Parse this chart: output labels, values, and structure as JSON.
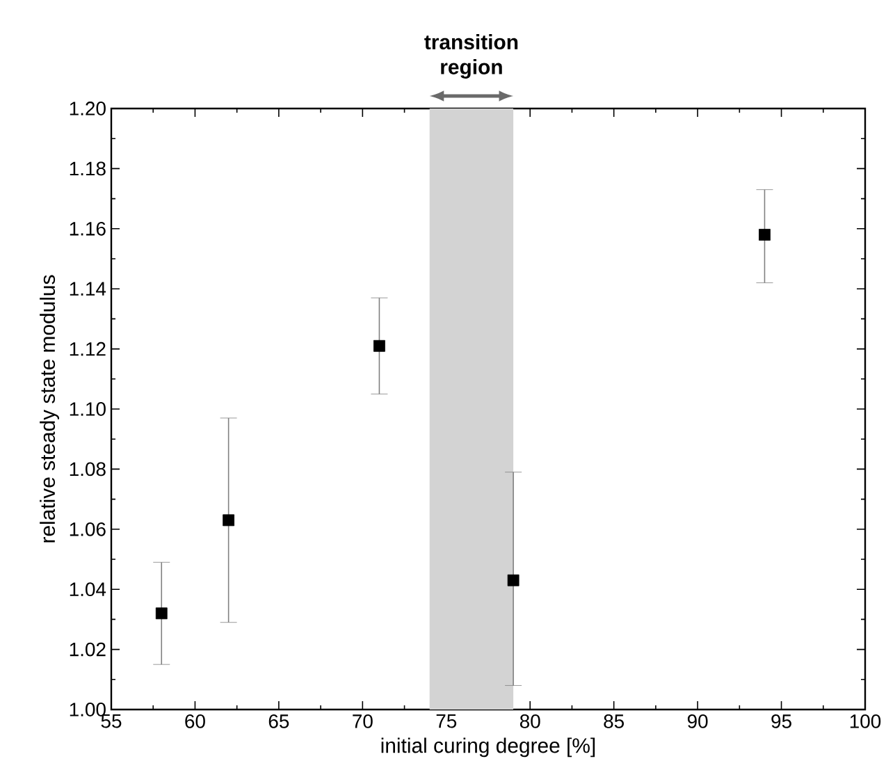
{
  "chart_data": {
    "type": "scatter",
    "xlabel": "initial curing degree [%]",
    "ylabel": "relative steady state modulus",
    "x": [
      58,
      62,
      71,
      79,
      94
    ],
    "values": [
      1.032,
      1.063,
      1.121,
      1.043,
      1.158
    ],
    "errors": [
      [
        1.015,
        1.049
      ],
      [
        1.029,
        1.097
      ],
      [
        1.105,
        1.137
      ],
      [
        1.008,
        1.079
      ],
      [
        1.142,
        1.173
      ]
    ],
    "color": "#000000",
    "marker": "square",
    "xlim": [
      55,
      100
    ],
    "xticks": [
      55,
      60,
      65,
      70,
      75,
      80,
      85,
      90,
      95,
      100
    ],
    "ylim": [
      1.0,
      1.2
    ],
    "yticks": [
      {
        "value": 1.0,
        "label": "1.00"
      },
      {
        "value": 1.02,
        "label": "1.02"
      },
      {
        "value": 1.04,
        "label": "1.04"
      },
      {
        "value": 1.06,
        "label": "1.06"
      },
      {
        "value": 1.08,
        "label": "1.08"
      },
      {
        "value": 1.1,
        "label": "1.10"
      },
      {
        "value": 1.12,
        "label": "1.12"
      },
      {
        "value": 1.14,
        "label": "1.14"
      },
      {
        "value": 1.16,
        "label": "1.16"
      },
      {
        "value": 1.18,
        "label": "1.18"
      },
      {
        "value": 1.2,
        "label": "1.20"
      }
    ],
    "bands": [
      {
        "axis": "x",
        "from": 74,
        "to": 79,
        "label": "**transition region**",
        "color": "#d3d3d3"
      }
    ]
  }
}
